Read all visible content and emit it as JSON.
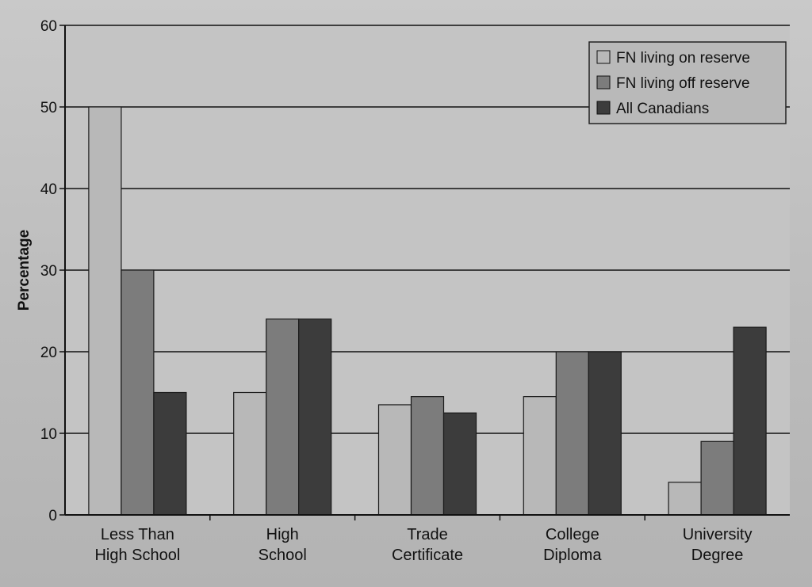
{
  "chart_data": {
    "type": "bar",
    "ylabel": "Percentage",
    "ylim": [
      0,
      60
    ],
    "yticks": [
      0,
      10,
      20,
      30,
      40,
      50,
      60
    ],
    "grid": true,
    "legend_position": "top-right",
    "categories": [
      [
        "Less Than",
        "High School"
      ],
      [
        "High",
        "School"
      ],
      [
        "Trade",
        "Certificate"
      ],
      [
        "College",
        "Diploma"
      ],
      [
        "University",
        "Degree"
      ]
    ],
    "series": [
      {
        "name": "FN living on reserve",
        "color": "#b8b8b8",
        "values": [
          50,
          15,
          13.5,
          14.5,
          4
        ]
      },
      {
        "name": "FN living off reserve",
        "color": "#7c7c7c",
        "values": [
          30,
          24,
          14.5,
          20,
          9
        ]
      },
      {
        "name": "All Canadians",
        "color": "#3c3c3c",
        "values": [
          15,
          24,
          12.5,
          20,
          23
        ]
      }
    ]
  }
}
